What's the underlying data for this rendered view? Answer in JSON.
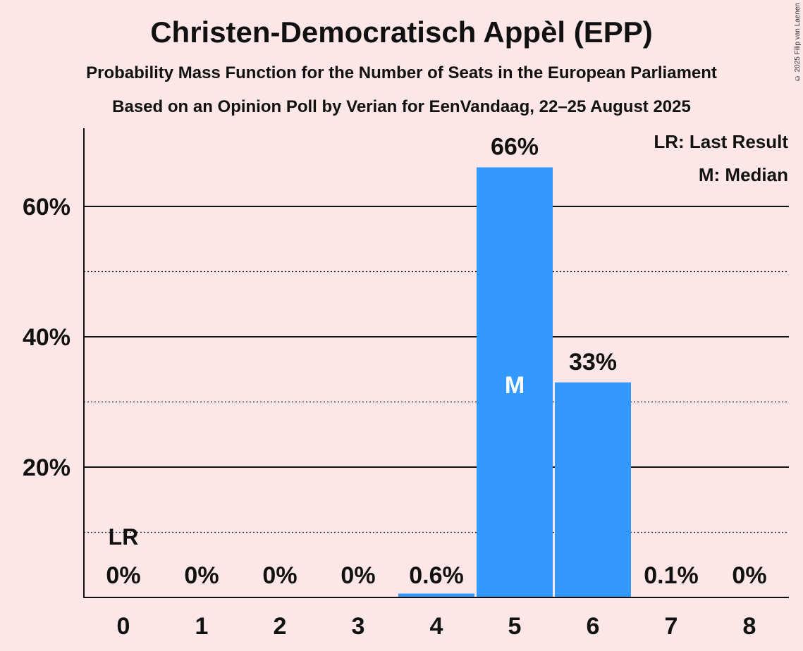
{
  "title": "Christen-Democratisch Appèl (EPP)",
  "subtitle": "Probability Mass Function for the Number of Seats in the European Parliament",
  "subtitle2": "Based on an Opinion Poll by Verian for EenVandaag, 22–25 August 2025",
  "copyright": "© 2025 Filip van Laenen",
  "legend": {
    "last_result": "LR: Last Result",
    "median": "M: Median"
  },
  "colors": {
    "background": "#fce6e8",
    "bar": "#3399ff",
    "text": "#111111"
  },
  "chart_data": {
    "type": "bar",
    "categories": [
      "0",
      "1",
      "2",
      "3",
      "4",
      "5",
      "6",
      "7",
      "8"
    ],
    "values": [
      0,
      0,
      0,
      0,
      0.6,
      66,
      33,
      0.1,
      0
    ],
    "data_labels": [
      "0%",
      "0%",
      "0%",
      "0%",
      "0.6%",
      "66%",
      "33%",
      "0.1%",
      "0%"
    ],
    "ylim": [
      0,
      72
    ],
    "yticks": [
      20,
      40,
      60
    ],
    "ytick_labels": [
      "20%",
      "40%",
      "60%"
    ],
    "minor_gridlines": [
      10,
      30,
      50
    ],
    "last_result_index": 0,
    "last_result_marker": "LR",
    "median_index": 5,
    "median_marker": "M",
    "grid": true,
    "legend_position": "top-right"
  }
}
